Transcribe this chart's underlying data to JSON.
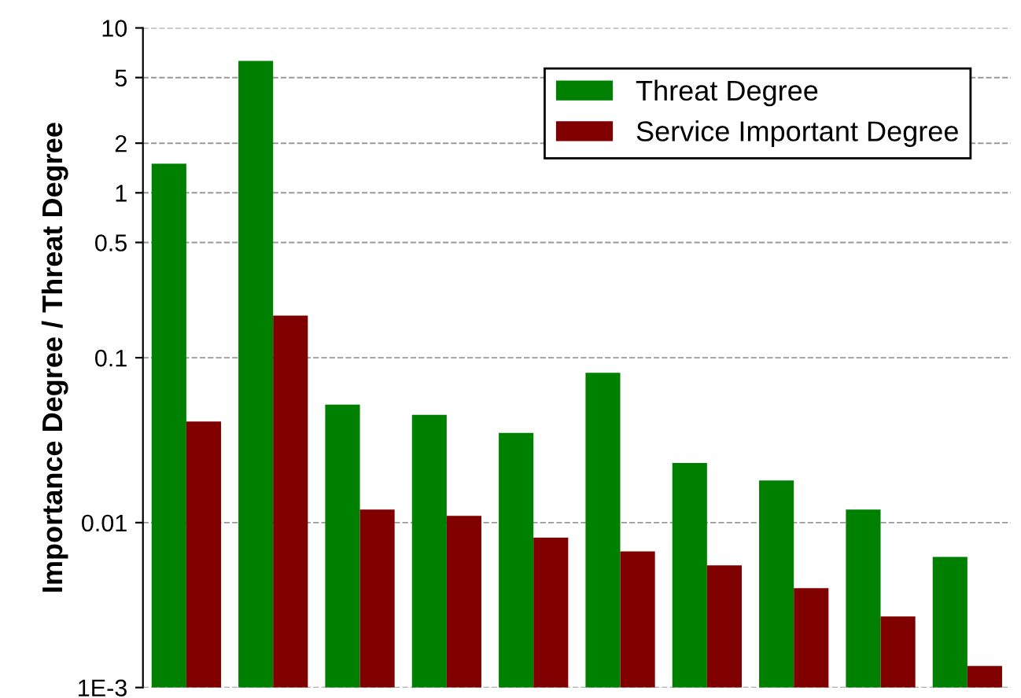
{
  "chart_data": {
    "type": "bar",
    "ylabel": "Importance Degree / Threat Degree",
    "categories": [
      null,
      null,
      null,
      null,
      null,
      null,
      null,
      null,
      null,
      null
    ],
    "series": [
      {
        "name": "Threat Degree",
        "color": "#008000",
        "values": [
          1.5,
          6.3,
          0.052,
          0.045,
          0.035,
          0.081,
          0.023,
          0.018,
          0.012,
          0.0062
        ]
      },
      {
        "name": "Service Important Degree",
        "color": "#800000",
        "values": [
          0.041,
          0.18,
          0.012,
          0.011,
          0.0081,
          0.0067,
          0.0055,
          0.004,
          0.0027,
          0.00135
        ]
      }
    ],
    "log": true,
    "ylim": [
      0.001,
      10
    ],
    "yticks": [
      {
        "value": 0.001,
        "label": "1E-3"
      },
      0.01,
      0.1,
      0.5,
      1,
      2,
      5,
      10
    ],
    "grid": "y",
    "legend": "top right",
    "tick_labels": "y"
  }
}
